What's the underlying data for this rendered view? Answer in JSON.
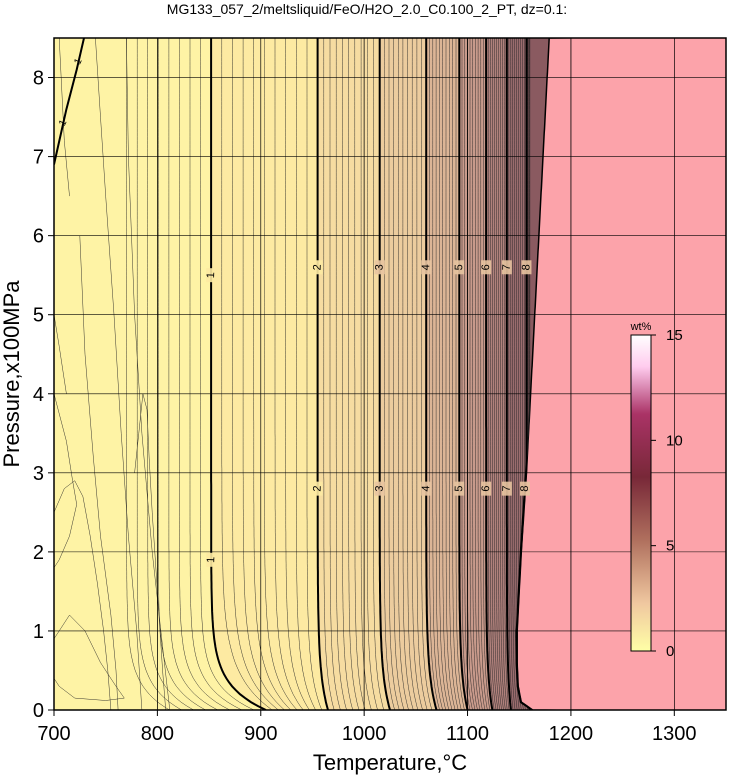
{
  "chart_data": {
    "type": "heatmap",
    "title": "MG133_057_2/meltsliquid/FeO/H2O_2.0_C0.100_2_PT, dz=0.1:",
    "xlabel": "Temperature,°C",
    "ylabel": "Pressure,x100MPa",
    "xlim": [
      700,
      1350
    ],
    "ylim": [
      0,
      8.5
    ],
    "x_ticks": [
      700,
      800,
      900,
      1000,
      1100,
      1200,
      1300
    ],
    "y_ticks": [
      0,
      1,
      2,
      3,
      4,
      5,
      6,
      7,
      8
    ],
    "grid": true,
    "colorbar": {
      "label": "wt%",
      "range": [
        0,
        15
      ],
      "ticks": [
        0,
        5,
        10,
        15
      ],
      "colors": [
        "#ffffa6",
        "#f0c8a0",
        "#b0705e",
        "#782838",
        "#aa3366",
        "#ffccee",
        "#ffffff"
      ]
    },
    "subsolidus_color": "#fca3aa",
    "background_color": "#fef3a5",
    "solidus_temperature": {
      "pressures": [
        0,
        0.1,
        0.3,
        0.6,
        1,
        2,
        3,
        4,
        5,
        6,
        7,
        8,
        8.5
      ],
      "temperatures": [
        1163,
        1152,
        1149,
        1148,
        1148,
        1152,
        1157,
        1161,
        1165,
        1169,
        1173,
        1177,
        1179
      ]
    },
    "contour_interval": 0.1,
    "major_contours": [
      {
        "value": 1,
        "label": "1",
        "t_high_p": 852,
        "t_low_p": 905,
        "label_pressures": [
          1.9,
          5.5
        ]
      },
      {
        "value": 2,
        "label": "2",
        "t_high_p": 955,
        "t_low_p": 965,
        "label_pressures": [
          2.8,
          5.6
        ]
      },
      {
        "value": 3,
        "label": "3",
        "t_high_p": 1015,
        "t_low_p": 1025,
        "label_pressures": [
          2.8,
          5.6
        ]
      },
      {
        "value": 4,
        "label": "4",
        "t_high_p": 1060,
        "t_low_p": 1070,
        "label_pressures": [
          2.8,
          5.6
        ]
      },
      {
        "value": 5,
        "label": "5",
        "t_high_p": 1092,
        "t_low_p": 1100,
        "label_pressures": [
          2.8,
          5.6
        ]
      },
      {
        "value": 6,
        "label": "6",
        "t_high_p": 1118,
        "t_low_p": 1124,
        "label_pressures": [
          2.8,
          5.6
        ]
      },
      {
        "value": 7,
        "label": "7",
        "t_high_p": 1138,
        "t_low_p": 1142,
        "label_pressures": [
          2.8,
          5.6
        ]
      },
      {
        "value": 8,
        "label": "8",
        "t_high_p": 1157,
        "t_low_p": 1162,
        "label_pressures": [
          2.8,
          5.6
        ]
      }
    ],
    "upper_left_contour": {
      "value": 1,
      "label": "1",
      "temperatures": [
        700,
        712,
        722,
        729
      ],
      "pressures": [
        6.9,
        7.6,
        8.1,
        8.5
      ]
    }
  }
}
